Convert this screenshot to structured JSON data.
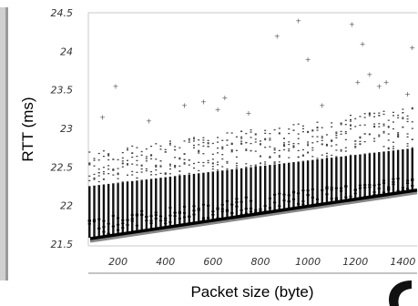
{
  "chart_data": {
    "type": "scatter",
    "title": "",
    "xlabel": "Packet size (byte)",
    "ylabel": "RTT (ms)",
    "xlim": [
      75,
      1460
    ],
    "ylim": [
      21.5,
      24.5
    ],
    "x_ticks": [
      200,
      400,
      600,
      800,
      1000,
      1200,
      1400
    ],
    "y_ticks": [
      21.5,
      22,
      22.5,
      23,
      23.5,
      24,
      24.5
    ],
    "y_tick_labels": [
      "21.5",
      "22",
      "22.5",
      "23",
      "23.5",
      "24",
      "24.5"
    ],
    "grid": false,
    "series": [
      {
        "kind": "points",
        "x_start": 80,
        "x_step": 20,
        "x_end": 1455,
        "dense_band_min": [
          21.58,
          22.18
        ],
        "dense_band_max": [
          22.25,
          22.75
        ],
        "sparse_max": [
          22.7,
          23.3
        ],
        "outliers": [
          [
            135,
            23.15
          ],
          [
            190,
            23.55
          ],
          [
            480,
            23.3
          ],
          [
            560,
            23.35
          ],
          [
            620,
            23.25
          ],
          [
            650,
            23.4
          ],
          [
            870,
            24.2
          ],
          [
            960,
            24.4
          ],
          [
            1000,
            23.9
          ],
          [
            1185,
            24.35
          ],
          [
            1210,
            23.6
          ],
          [
            1230,
            24.1
          ],
          [
            1260,
            23.7
          ],
          [
            1300,
            23.55
          ],
          [
            1330,
            23.6
          ],
          [
            1440,
            24.05
          ],
          [
            1420,
            23.45
          ],
          [
            1060,
            23.3
          ],
          [
            750,
            23.2
          ],
          [
            330,
            23.1
          ]
        ]
      },
      {
        "kind": "line",
        "x": [
          75,
          1460
        ],
        "y": [
          21.57,
          22.2
        ]
      }
    ]
  }
}
